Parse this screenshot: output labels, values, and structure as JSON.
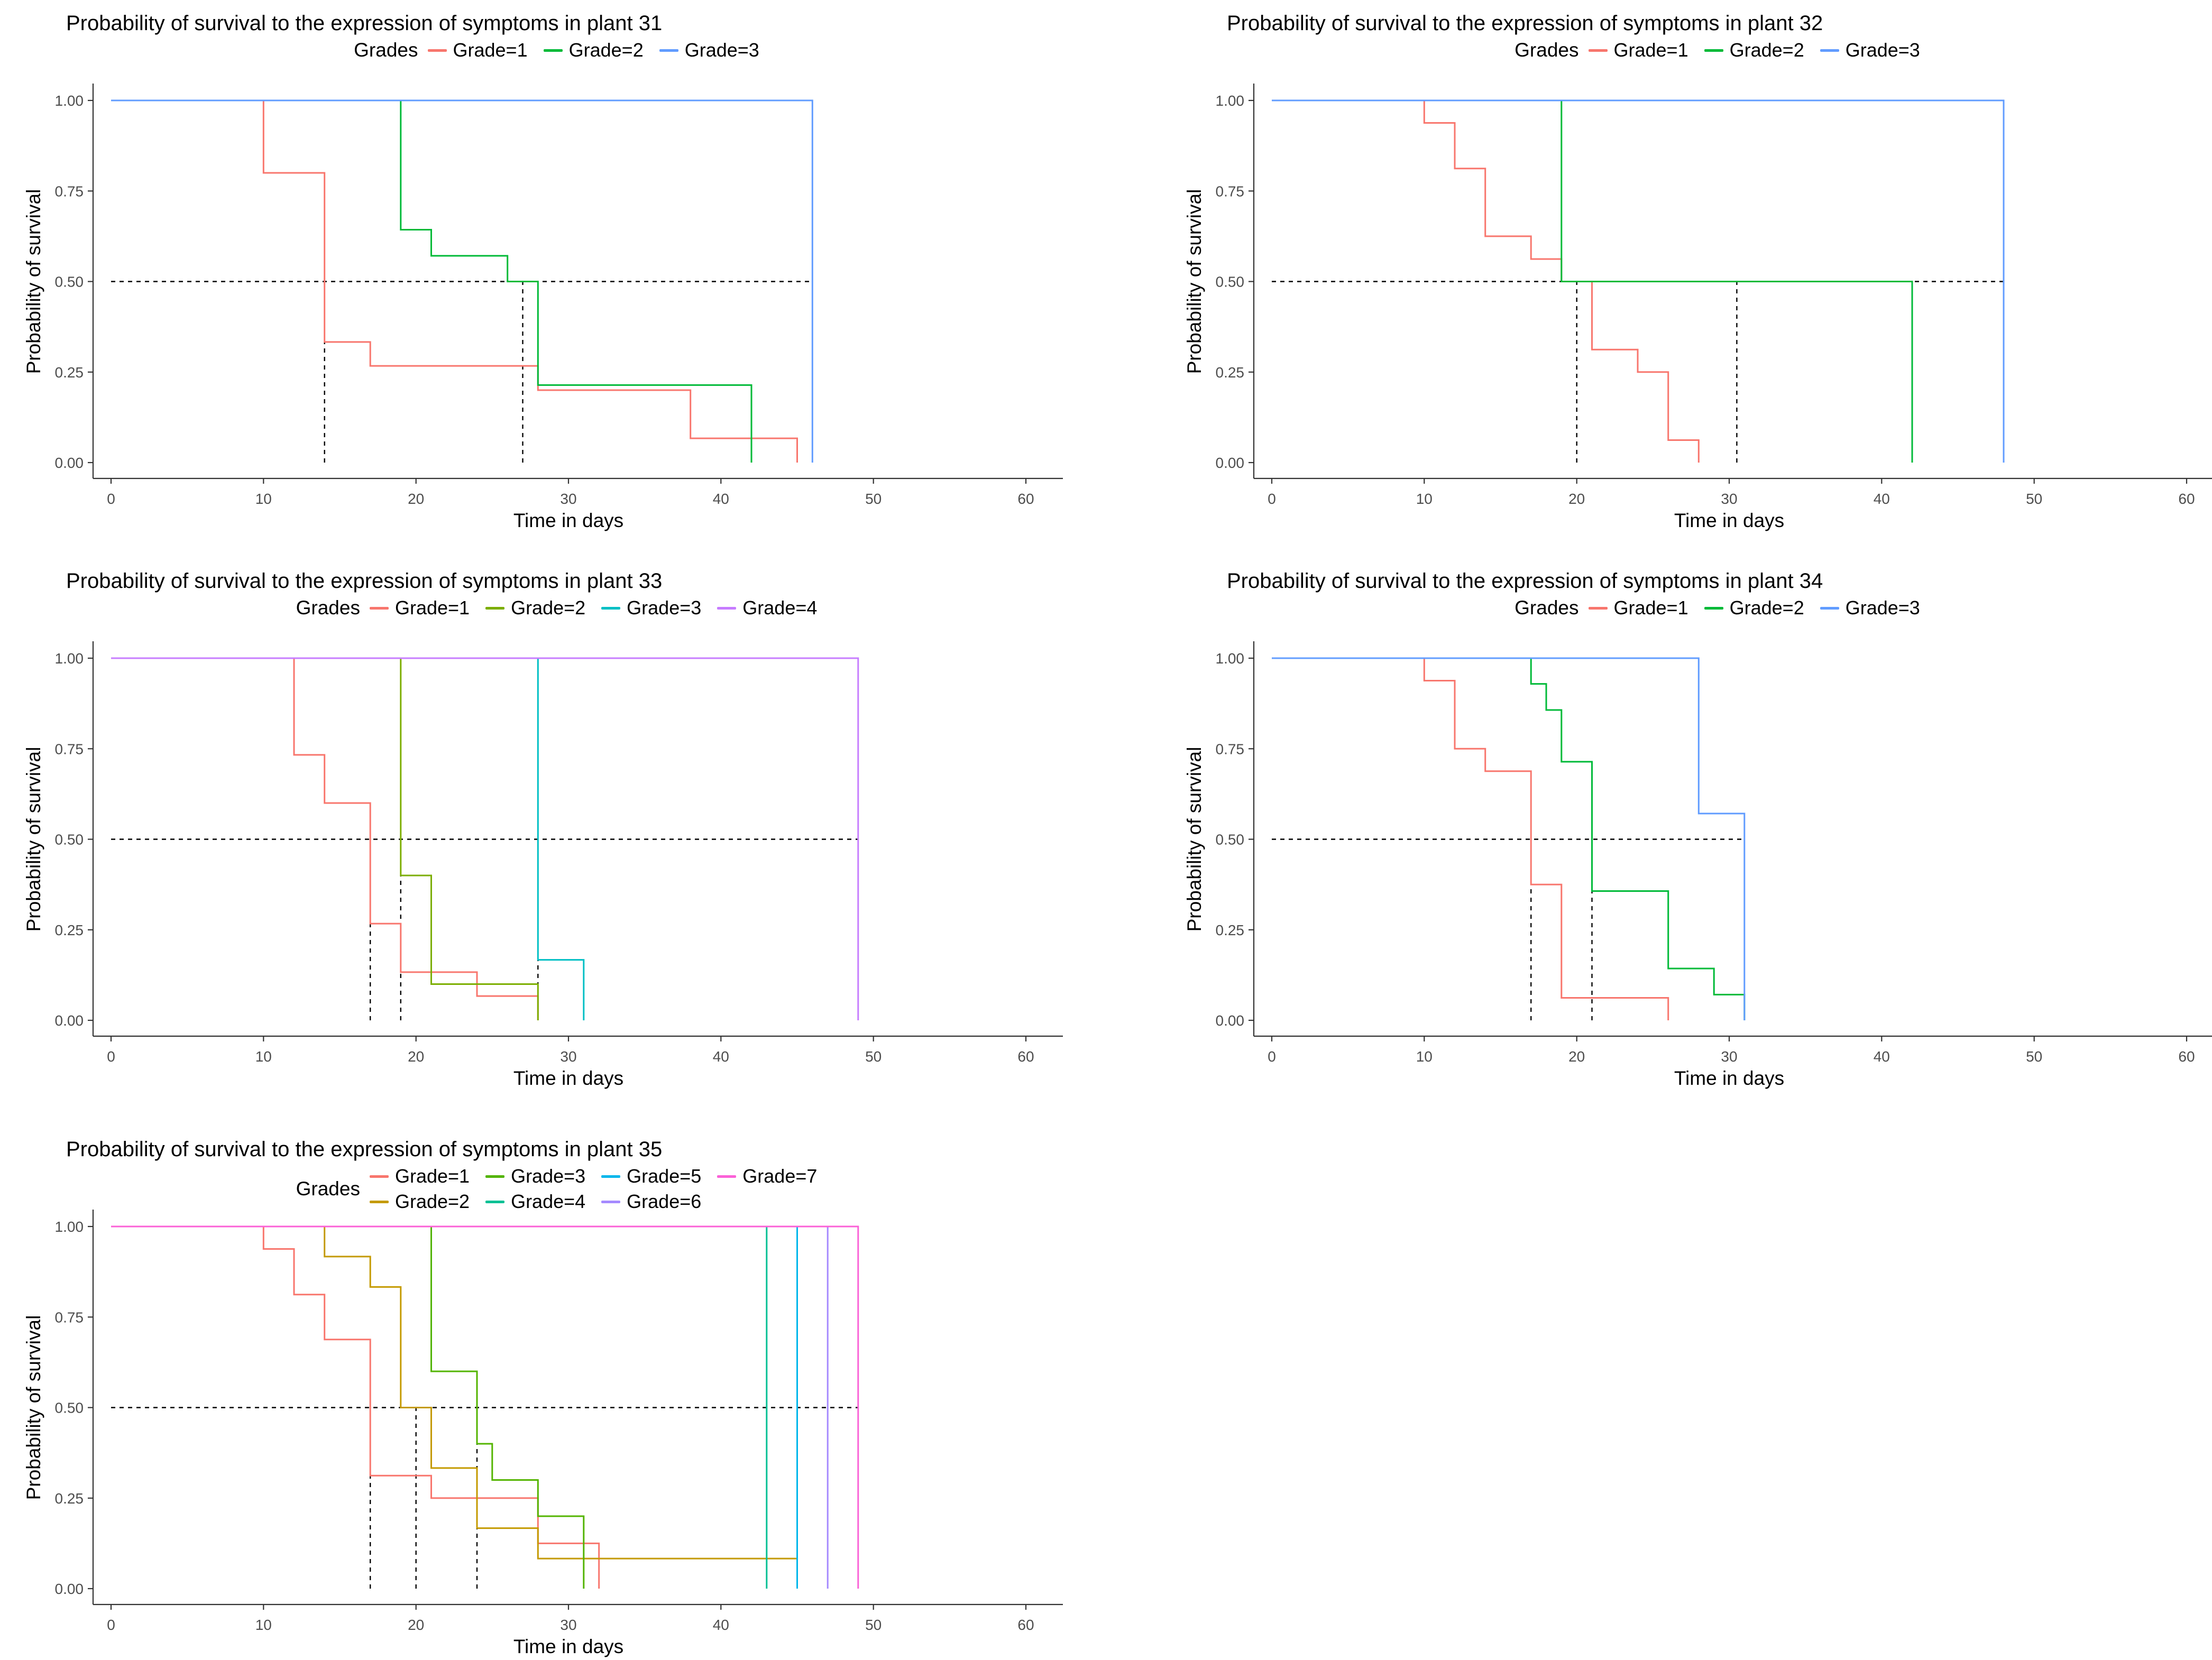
{
  "page": {
    "background": "#ffffff"
  },
  "shared": {
    "xlabel": "Time in days",
    "ylabel": "Probability of survival",
    "legend_title": "Grades",
    "x_tick_labels": [
      "0",
      "10",
      "20",
      "30",
      "40",
      "50",
      "60"
    ],
    "y_tick_labels": [
      "0.00",
      "0.25",
      "0.50",
      "0.75",
      "1.00"
    ],
    "median_line_color": "#000000",
    "axis_color": "#333333",
    "tick_label_color": "#4d4d4d"
  },
  "chart_data": [
    {
      "type": "line",
      "subtype": "kaplan-meier-step",
      "title": "Probability of survival to the expression of symptoms in plant 31",
      "xlabel": "Time in days",
      "ylabel": "Probability of survival",
      "xlim": [
        0,
        62
      ],
      "ylim": [
        0,
        1
      ],
      "x_ticks": [
        0,
        10,
        20,
        30,
        40,
        50,
        60
      ],
      "y_ticks": [
        0,
        0.25,
        0.5,
        0.75,
        1
      ],
      "grid_lines": "off",
      "legend_position": "top",
      "legend_title": "Grades",
      "legend_rows": [
        [
          "Grade=1",
          "Grade=2",
          "Grade=3"
        ]
      ],
      "series": [
        {
          "name": "Grade=1",
          "color": "#F8766D",
          "points": [
            [
              0,
              1
            ],
            [
              10,
              0.8
            ],
            [
              14,
              0.333
            ],
            [
              17,
              0.267
            ],
            [
              28,
              0.2
            ],
            [
              38,
              0.067
            ],
            [
              45,
              0
            ]
          ]
        },
        {
          "name": "Grade=2",
          "color": "#00BA38",
          "points": [
            [
              0,
              1
            ],
            [
              19,
              0.643
            ],
            [
              21,
              0.571
            ],
            [
              26,
              0.5
            ],
            [
              28,
              0.214
            ],
            [
              42,
              0
            ]
          ]
        },
        {
          "name": "Grade=3",
          "color": "#619CFF",
          "points": [
            [
              0,
              1
            ],
            [
              46,
              0
            ]
          ]
        }
      ],
      "median_survival_times": [
        14,
        27,
        46
      ],
      "median_hline": {
        "y": 0.5,
        "x_from": 0,
        "x_to": 46
      },
      "grid": {
        "row": 0,
        "col": 0
      }
    },
    {
      "type": "line",
      "subtype": "kaplan-meier-step",
      "title": "Probability of survival to the expression of symptoms in plant 32",
      "xlabel": "Time in days",
      "ylabel": "Probability of survival",
      "xlim": [
        0,
        62
      ],
      "ylim": [
        0,
        1
      ],
      "x_ticks": [
        0,
        10,
        20,
        30,
        40,
        50,
        60
      ],
      "y_ticks": [
        0,
        0.25,
        0.5,
        0.75,
        1
      ],
      "grid_lines": "off",
      "legend_position": "top",
      "legend_title": "Grades",
      "legend_rows": [
        [
          "Grade=1",
          "Grade=2",
          "Grade=3"
        ]
      ],
      "series": [
        {
          "name": "Grade=1",
          "color": "#F8766D",
          "points": [
            [
              0,
              1
            ],
            [
              10,
              0.938
            ],
            [
              12,
              0.812
            ],
            [
              14,
              0.625
            ],
            [
              17,
              0.562
            ],
            [
              19,
              0.5
            ],
            [
              21,
              0.312
            ],
            [
              24,
              0.25
            ],
            [
              26,
              0.062
            ],
            [
              28,
              0
            ]
          ]
        },
        {
          "name": "Grade=2",
          "color": "#00BA38",
          "points": [
            [
              0,
              1
            ],
            [
              19,
              0.5
            ],
            [
              42,
              0
            ]
          ]
        },
        {
          "name": "Grade=3",
          "color": "#619CFF",
          "points": [
            [
              0,
              1
            ],
            [
              48,
              0
            ]
          ]
        }
      ],
      "median_survival_times": [
        20,
        30.5,
        48
      ],
      "median_hline": {
        "y": 0.5,
        "x_from": 0,
        "x_to": 48
      },
      "grid": {
        "row": 0,
        "col": 1
      }
    },
    {
      "type": "line",
      "subtype": "kaplan-meier-step",
      "title": "Probability of survival to the expression of symptoms in plant 33",
      "xlabel": "Time in days",
      "ylabel": "Probability of survival",
      "xlim": [
        0,
        62
      ],
      "ylim": [
        0,
        1
      ],
      "x_ticks": [
        0,
        10,
        20,
        30,
        40,
        50,
        60
      ],
      "y_ticks": [
        0,
        0.25,
        0.5,
        0.75,
        1
      ],
      "grid_lines": "off",
      "legend_position": "top",
      "legend_title": "Grades",
      "legend_rows": [
        [
          "Grade=1",
          "Grade=2",
          "Grade=3",
          "Grade=4"
        ]
      ],
      "series": [
        {
          "name": "Grade=1",
          "color": "#F8766D",
          "points": [
            [
              0,
              1
            ],
            [
              12,
              0.733
            ],
            [
              14,
              0.6
            ],
            [
              17,
              0.267
            ],
            [
              19,
              0.133
            ],
            [
              24,
              0.067
            ],
            [
              28,
              0
            ]
          ]
        },
        {
          "name": "Grade=2",
          "color": "#7CAE00",
          "points": [
            [
              0,
              1
            ],
            [
              19,
              0.4
            ],
            [
              21,
              0.1
            ],
            [
              28,
              0
            ]
          ]
        },
        {
          "name": "Grade=3",
          "color": "#00BFC4",
          "points": [
            [
              0,
              1
            ],
            [
              28,
              0.167
            ],
            [
              31,
              0
            ]
          ]
        },
        {
          "name": "Grade=4",
          "color": "#C77CFF",
          "points": [
            [
              0,
              1
            ],
            [
              49,
              0
            ]
          ]
        }
      ],
      "median_survival_times": [
        17,
        19,
        28,
        49
      ],
      "median_hline": {
        "y": 0.5,
        "x_from": 0,
        "x_to": 49
      },
      "grid": {
        "row": 1,
        "col": 0
      }
    },
    {
      "type": "line",
      "subtype": "kaplan-meier-step",
      "title": "Probability of survival to the expression of symptoms in plant 34",
      "xlabel": "Time in days",
      "ylabel": "Probability of survival",
      "xlim": [
        0,
        62
      ],
      "ylim": [
        0,
        1
      ],
      "x_ticks": [
        0,
        10,
        20,
        30,
        40,
        50,
        60
      ],
      "y_ticks": [
        0,
        0.25,
        0.5,
        0.75,
        1
      ],
      "grid_lines": "off",
      "legend_position": "top",
      "legend_title": "Grades",
      "legend_rows": [
        [
          "Grade=1",
          "Grade=2",
          "Grade=3"
        ]
      ],
      "series": [
        {
          "name": "Grade=1",
          "color": "#F8766D",
          "points": [
            [
              0,
              1
            ],
            [
              10,
              0.938
            ],
            [
              12,
              0.75
            ],
            [
              14,
              0.688
            ],
            [
              17,
              0.375
            ],
            [
              19,
              0.062
            ],
            [
              26,
              0
            ]
          ]
        },
        {
          "name": "Grade=2",
          "color": "#00BA38",
          "points": [
            [
              0,
              1
            ],
            [
              17,
              0.929
            ],
            [
              18,
              0.857
            ],
            [
              19,
              0.714
            ],
            [
              21,
              0.357
            ],
            [
              26,
              0.143
            ],
            [
              29,
              0.071
            ],
            [
              31,
              0
            ]
          ]
        },
        {
          "name": "Grade=3",
          "color": "#619CFF",
          "points": [
            [
              0,
              1
            ],
            [
              28,
              0.571
            ],
            [
              31,
              0
            ]
          ]
        }
      ],
      "median_survival_times": [
        17,
        21,
        31
      ],
      "median_hline": {
        "y": 0.5,
        "x_from": 0,
        "x_to": 31
      },
      "grid": {
        "row": 1,
        "col": 1
      }
    },
    {
      "type": "line",
      "subtype": "kaplan-meier-step",
      "title": "Probability of survival to the expression of symptoms in plant 35",
      "xlabel": "Time in days",
      "ylabel": "Probability of survival",
      "xlim": [
        0,
        62
      ],
      "ylim": [
        0,
        1
      ],
      "x_ticks": [
        0,
        10,
        20,
        30,
        40,
        50,
        60
      ],
      "y_ticks": [
        0,
        0.25,
        0.5,
        0.75,
        1
      ],
      "grid_lines": "off",
      "legend_position": "top",
      "legend_title": "Grades",
      "legend_rows": [
        [
          "Grade=1",
          "Grade=3",
          "Grade=5",
          "Grade=7"
        ],
        [
          "Grade=2",
          "Grade=4",
          "Grade=6"
        ]
      ],
      "series": [
        {
          "name": "Grade=1",
          "color": "#F8766D",
          "points": [
            [
              0,
              1
            ],
            [
              10,
              0.938
            ],
            [
              12,
              0.812
            ],
            [
              14,
              0.688
            ],
            [
              17,
              0.312
            ],
            [
              21,
              0.25
            ],
            [
              28,
              0.125
            ],
            [
              32,
              0
            ]
          ]
        },
        {
          "name": "Grade=2",
          "color": "#C49A00",
          "points": [
            [
              0,
              1
            ],
            [
              14,
              0.917
            ],
            [
              17,
              0.833
            ],
            [
              19,
              0.5
            ],
            [
              21,
              0.333
            ],
            [
              24,
              0.167
            ],
            [
              28,
              0.083
            ],
            [
              45,
              0
            ]
          ]
        },
        {
          "name": "Grade=3",
          "color": "#53B400",
          "points": [
            [
              0,
              1
            ],
            [
              21,
              0.6
            ],
            [
              24,
              0.4
            ],
            [
              25,
              0.3
            ],
            [
              28,
              0.2
            ],
            [
              31,
              0
            ]
          ]
        },
        {
          "name": "Grade=4",
          "color": "#00C094",
          "points": [
            [
              0,
              1
            ],
            [
              43,
              0
            ]
          ]
        },
        {
          "name": "Grade=5",
          "color": "#00B6EB",
          "points": [
            [
              0,
              1
            ],
            [
              45,
              0
            ]
          ]
        },
        {
          "name": "Grade=6",
          "color": "#A58AFF",
          "points": [
            [
              0,
              1
            ],
            [
              47,
              0
            ]
          ]
        },
        {
          "name": "Grade=7",
          "color": "#FB61D7",
          "points": [
            [
              0,
              1
            ],
            [
              49,
              0
            ]
          ]
        }
      ],
      "median_survival_times": [
        17,
        20,
        24,
        43,
        45,
        47,
        49
      ],
      "median_hline": {
        "y": 0.5,
        "x_from": 0,
        "x_to": 49
      },
      "grid": {
        "row": 2,
        "col": 0
      }
    }
  ]
}
